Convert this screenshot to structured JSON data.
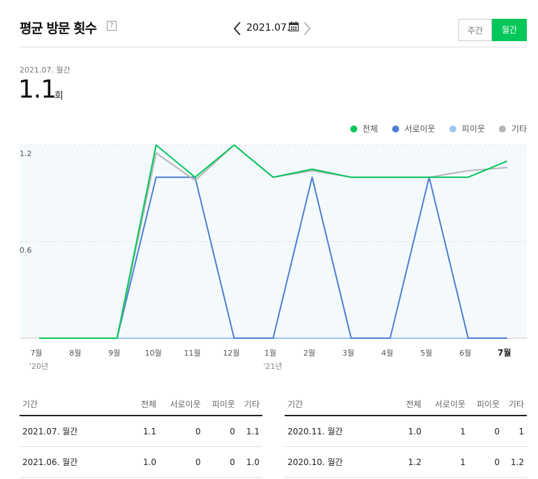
{
  "header": {
    "title": "평균 방문 횟수",
    "help": "?",
    "period": "2021.07.",
    "tab_week": "주간",
    "tab_month": "월간"
  },
  "summary": {
    "label": "2021.07. 월간",
    "value": "1.1",
    "unit": "회"
  },
  "colors": {
    "total": "#03c75a",
    "neighbor": "#4a7fd4",
    "buddy": "#9ec6f3",
    "other": "#b5b5b5",
    "accent": "#03c75a"
  },
  "chart_data": {
    "type": "line",
    "categories": [
      "7월",
      "8월",
      "9월",
      "10월",
      "11월",
      "12월",
      "1월",
      "2월",
      "3월",
      "4월",
      "5월",
      "6월",
      "7월"
    ],
    "year_labels": [
      {
        "index": 0,
        "text": "'20년"
      },
      {
        "index": 6,
        "text": "'21년"
      }
    ],
    "ylim": [
      0,
      1.2
    ],
    "yticks": [
      "1.2",
      "0.6"
    ],
    "series": [
      {
        "name": "전체",
        "key": "total",
        "values": [
          0,
          0,
          0,
          1.2,
          1.0,
          1.2,
          1.0,
          1.05,
          1.0,
          1.0,
          1.0,
          1.0,
          1.1
        ]
      },
      {
        "name": "서로이웃",
        "key": "neighbor",
        "values": [
          0,
          0,
          0,
          1,
          1,
          0,
          0,
          1,
          0,
          0,
          1,
          0,
          0
        ]
      },
      {
        "name": "피이웃",
        "key": "buddy",
        "values": [
          0,
          0,
          0,
          0,
          0,
          0,
          0,
          0,
          0,
          0,
          0,
          0,
          0
        ]
      },
      {
        "name": "기타",
        "key": "other",
        "values": [
          0,
          0,
          0,
          1.15,
          0.98,
          1.2,
          1.0,
          1.04,
          1.0,
          1.0,
          1.0,
          1.04,
          1.06
        ]
      }
    ]
  },
  "table": {
    "headers": [
      "기간",
      "전체",
      "서로이웃",
      "피이웃",
      "기타"
    ],
    "left_rows": [
      [
        "2021.07. 월간",
        "1.1",
        "0",
        "0",
        "1.1"
      ],
      [
        "2021.06. 월간",
        "1.0",
        "0",
        "0",
        "1.0"
      ]
    ],
    "right_rows": [
      [
        "2020.11. 월간",
        "1.0",
        "1",
        "0",
        "1"
      ],
      [
        "2020.10. 월간",
        "1.2",
        "1",
        "0",
        "1.2"
      ]
    ]
  }
}
